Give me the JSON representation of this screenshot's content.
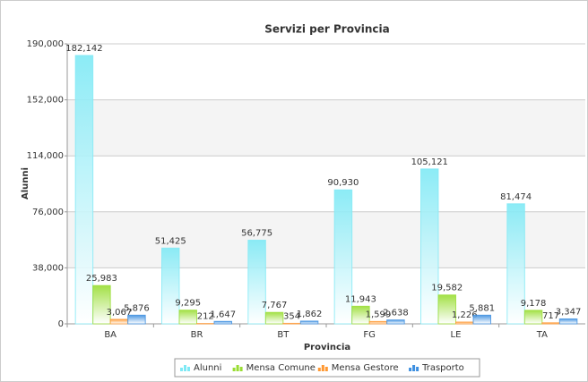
{
  "chart_data": {
    "type": "bar",
    "title": "Servizi per Provincia",
    "x_label": "Provincia",
    "y_label": "Alunni",
    "categories": [
      "BA",
      "BR",
      "BT",
      "FG",
      "LE",
      "TA"
    ],
    "series": [
      {
        "name": "Alunni",
        "color": "#7fe9f5",
        "values": [
          182142,
          51425,
          56775,
          90930,
          105121,
          81474
        ],
        "value_labels": [
          "182,142",
          "51,425",
          "56,775",
          "90,930",
          "105,121",
          "81,474"
        ]
      },
      {
        "name": "Mensa Comune",
        "color": "#99dd33",
        "values": [
          25983,
          9295,
          7767,
          11943,
          19582,
          9178
        ],
        "value_labels": [
          "25,983",
          "9,295",
          "7,767",
          "11,943",
          "19,582",
          "9,178"
        ]
      },
      {
        "name": "Mensa Gestore",
        "color": "#ff9933",
        "values": [
          3067,
          212,
          354,
          1599,
          1226,
          717
        ],
        "value_labels": [
          "3,067",
          "212",
          "354",
          "1,599",
          "1,226",
          "717"
        ]
      },
      {
        "name": "Trasporto",
        "color": "#3d8fe0",
        "values": [
          5876,
          1647,
          1862,
          2638,
          5881,
          3347
        ],
        "value_labels": [
          "5,876",
          "1,647",
          "1,862",
          "2,638",
          "5,881",
          "3,347"
        ]
      }
    ],
    "ylim": [
      0,
      190000
    ],
    "yticks": [
      0,
      {
        "value": 38000,
        "label": "38,000"
      },
      {
        "value": 76000,
        "label": "76,000"
      },
      {
        "value": 114000,
        "label": "114,000"
      },
      {
        "value": 152000,
        "label": "152,000"
      },
      {
        "value": 190000,
        "label": "190,000"
      }
    ],
    "grid": true,
    "alternate_bands": true,
    "legend": "bottom"
  }
}
